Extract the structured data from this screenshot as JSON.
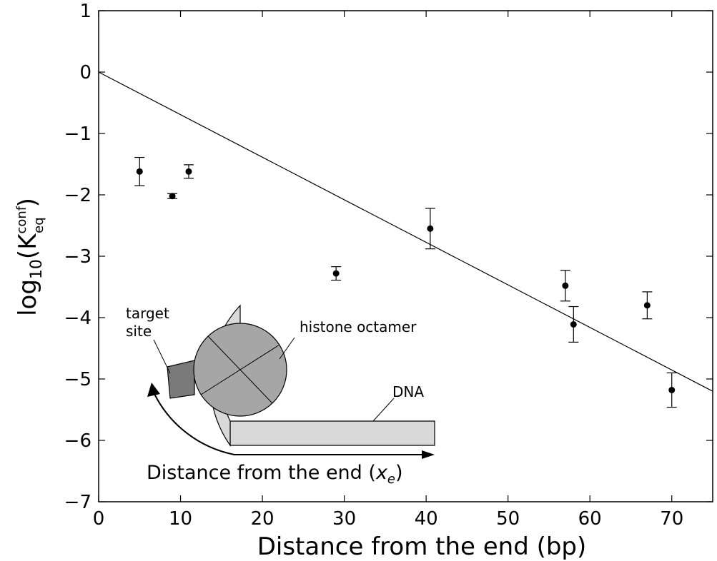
{
  "chart_data": {
    "type": "scatter",
    "title": "",
    "xlabel": "Distance from the end (bp)",
    "ylabel": {
      "prefix": "log",
      "sub": "10",
      "open": "(K",
      "sup": "conf",
      "sub2": "eq",
      "close": ")"
    },
    "xlim": [
      0,
      75
    ],
    "ylim": [
      -7,
      1
    ],
    "x_ticks": [
      "0",
      "10",
      "20",
      "30",
      "40",
      "50",
      "60",
      "70"
    ],
    "y_ticks": [
      "1",
      "0",
      "−1",
      "−2",
      "−3",
      "−4",
      "−5",
      "−6",
      "−7"
    ],
    "points": [
      {
        "x": 5,
        "y": -1.62,
        "err_low": -1.85,
        "err_high": -1.39
      },
      {
        "x": 9,
        "y": -2.02,
        "err_low": -2.06,
        "err_high": -1.98
      },
      {
        "x": 11,
        "y": -1.62,
        "err_low": -1.73,
        "err_high": -1.51
      },
      {
        "x": 29,
        "y": -3.28,
        "err_low": -3.39,
        "err_high": -3.17
      },
      {
        "x": 40.5,
        "y": -2.55,
        "err_low": -2.88,
        "err_high": -2.22
      },
      {
        "x": 57,
        "y": -3.48,
        "err_low": -3.73,
        "err_high": -3.23
      },
      {
        "x": 58,
        "y": -4.11,
        "err_low": -4.4,
        "err_high": -3.82
      },
      {
        "x": 67,
        "y": -3.8,
        "err_low": -4.02,
        "err_high": -3.58
      },
      {
        "x": 70,
        "y": -5.18,
        "err_low": -5.46,
        "err_high": -4.9
      }
    ],
    "fit_line": {
      "x": [
        0,
        75
      ],
      "y": [
        0,
        -5.2
      ]
    },
    "inset": {
      "labels": {
        "target_site": [
          "target",
          "site"
        ],
        "histone": "histone octamer",
        "dna": "DNA",
        "axis_text": "Distance from the end (",
        "axis_var": "x",
        "axis_sub": "e",
        "axis_close": ")"
      },
      "colors": {
        "dna_fill": "#d9d9d9",
        "histone_fill": "#a6a6a6",
        "target_fill": "#7a7a7a"
      }
    }
  }
}
